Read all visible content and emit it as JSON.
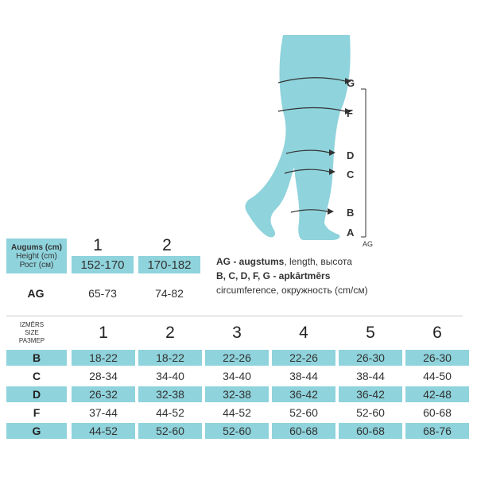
{
  "figure": {
    "labels": {
      "G": "G",
      "F": "F",
      "D": "D",
      "C": "C",
      "B": "B",
      "A": "A",
      "AG": "AG"
    }
  },
  "height_table": {
    "header_lines": [
      "Augums (cm)",
      "Height (cm)",
      "Рост (см)"
    ],
    "columns": [
      "1",
      "2"
    ],
    "heights": [
      "152-170",
      "170-182"
    ],
    "ag_label": "AG",
    "ag_values": [
      "65-73",
      "74-82"
    ]
  },
  "legend": {
    "line1_bold": "AG - augstums",
    "line1_rest": ", length, высота",
    "line2": "B, C, D, F, G - apkārtmērs",
    "line3": "circumference, окружность (cm/см)"
  },
  "size_table": {
    "header_lines": [
      "IZMĒRS",
      "SIZE",
      "РАЗМЕР"
    ],
    "columns": [
      "1",
      "2",
      "3",
      "4",
      "5",
      "6"
    ],
    "rows": [
      {
        "label": "B",
        "values": [
          "18-22",
          "18-22",
          "22-26",
          "22-26",
          "26-30",
          "26-30"
        ]
      },
      {
        "label": "C",
        "values": [
          "28-34",
          "34-40",
          "34-40",
          "38-44",
          "38-44",
          "44-50"
        ]
      },
      {
        "label": "D",
        "values": [
          "26-32",
          "32-38",
          "32-38",
          "36-42",
          "36-42",
          "42-48"
        ]
      },
      {
        "label": "F",
        "values": [
          "37-44",
          "44-52",
          "44-52",
          "52-60",
          "52-60",
          "60-68"
        ]
      },
      {
        "label": "G",
        "values": [
          "44-52",
          "52-60",
          "52-60",
          "60-68",
          "60-68",
          "68-76"
        ]
      }
    ]
  },
  "colors": {
    "accent": "#8fd3dc",
    "leg": "#8fd3dc",
    "text": "#222222"
  }
}
